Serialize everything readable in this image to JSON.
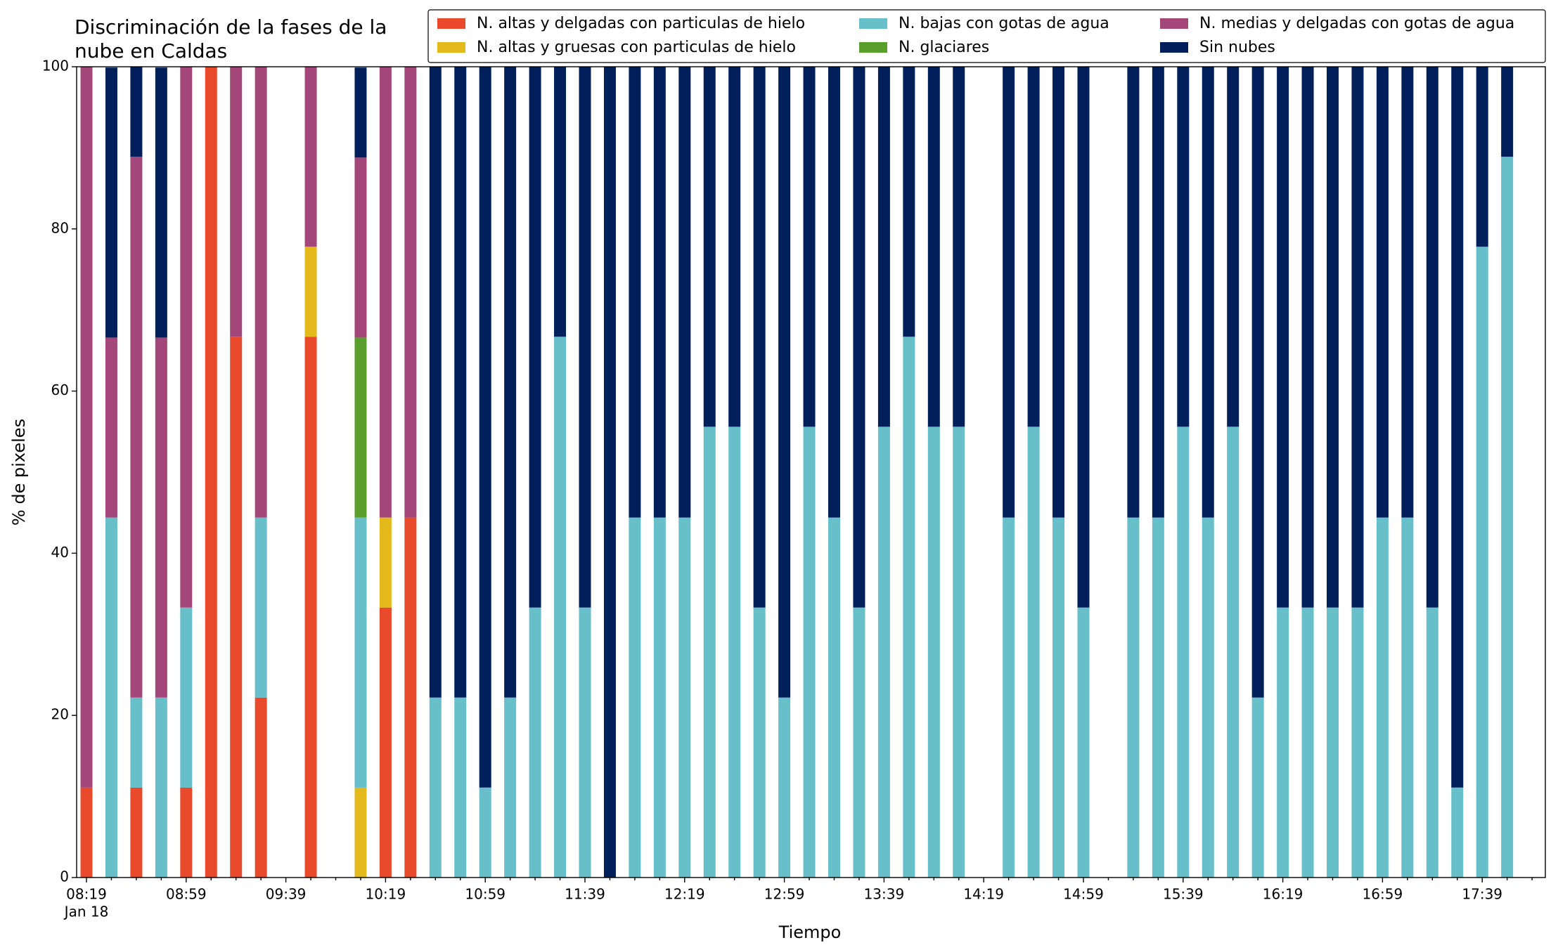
{
  "chart_data": {
    "type": "stacked_bar",
    "title_lines": [
      "Discriminación de la fases de la",
      "nube en Caldas"
    ],
    "xlabel": "Tiempo",
    "ylabel": "% de pixeles",
    "categories": [
      "08:19",
      null,
      null,
      null,
      "08:59",
      null,
      null,
      null,
      "09:39",
      null,
      null,
      null,
      "10:19",
      null,
      null,
      null,
      "10:59",
      null,
      null,
      null,
      "11:39",
      null,
      null,
      null,
      "12:19",
      null,
      null,
      null,
      "12:59",
      null,
      null,
      null,
      "13:39",
      null,
      null,
      null,
      "14:19",
      null,
      null,
      null,
      "14:59",
      null,
      null,
      null,
      "15:39",
      null,
      null,
      null,
      "16:19",
      null,
      null,
      null,
      "16:59",
      null,
      null,
      null,
      "17:39",
      null,
      null
    ],
    "x_date_label": "Jan 18",
    "ylim": [
      0,
      100
    ],
    "yticks": [
      0,
      20,
      40,
      60,
      80,
      100
    ],
    "legend": "top-right",
    "series": [
      {
        "name": "N. altas y delgadas con particulas de hielo",
        "color": "#e84a2b",
        "values": [
          11.1,
          0,
          11.1,
          0,
          11.1,
          100,
          66.7,
          22.2,
          null,
          66.7,
          null,
          0,
          33.3,
          44.4,
          0,
          0,
          0,
          0,
          0,
          0,
          0,
          0,
          0,
          0,
          0,
          0,
          0,
          0,
          0,
          0,
          0,
          0,
          0,
          0,
          0,
          0,
          null,
          0,
          0,
          0,
          0,
          null,
          0,
          0,
          0,
          0,
          0,
          0,
          0,
          0,
          0,
          0,
          0,
          0,
          0,
          0,
          0,
          0,
          null
        ]
      },
      {
        "name": "N. altas y gruesas con particulas de hielo",
        "color": "#e3b91c",
        "values": [
          0,
          0,
          0,
          0,
          0,
          0,
          0,
          0,
          null,
          11.1,
          null,
          11.1,
          11.1,
          0,
          0,
          0,
          0,
          0,
          0,
          0,
          0,
          0,
          0,
          0,
          0,
          0,
          0,
          0,
          0,
          0,
          0,
          0,
          0,
          0,
          0,
          0,
          null,
          0,
          0,
          0,
          0,
          null,
          0,
          0,
          0,
          0,
          0,
          0,
          0,
          0,
          0,
          0,
          0,
          0,
          0,
          0,
          0,
          0,
          null
        ]
      },
      {
        "name": "N. bajas con gotas de agua",
        "color": "#67bfca",
        "values": [
          0,
          44.4,
          11.1,
          22.2,
          22.2,
          0,
          0,
          22.2,
          null,
          0,
          null,
          33.3,
          0,
          0,
          22.2,
          22.2,
          11.1,
          22.2,
          33.3,
          66.7,
          33.3,
          0,
          44.4,
          44.4,
          44.4,
          55.6,
          55.6,
          33.3,
          22.2,
          55.6,
          44.4,
          33.3,
          55.6,
          66.7,
          55.6,
          55.6,
          null,
          44.4,
          55.6,
          44.4,
          33.3,
          null,
          44.4,
          44.4,
          55.6,
          44.4,
          55.6,
          22.2,
          33.3,
          33.3,
          33.3,
          33.3,
          44.4,
          44.4,
          33.3,
          11.1,
          77.8,
          88.9,
          null
        ]
      },
      {
        "name": "N. glaciares",
        "color": "#5a9e2b",
        "values": [
          0,
          0,
          0,
          0,
          0,
          0,
          0,
          0,
          null,
          0,
          null,
          22.2,
          0,
          0,
          0,
          0,
          0,
          0,
          0,
          0,
          0,
          0,
          0,
          0,
          0,
          0,
          0,
          0,
          0,
          0,
          0,
          0,
          0,
          0,
          0,
          0,
          null,
          0,
          0,
          0,
          0,
          null,
          0,
          0,
          0,
          0,
          0,
          0,
          0,
          0,
          0,
          0,
          0,
          0,
          0,
          0,
          0,
          0,
          null
        ]
      },
      {
        "name": "N. medias y delgadas con gotas de agua",
        "color": "#a3477a",
        "values": [
          88.9,
          22.2,
          66.7,
          44.4,
          66.7,
          0,
          33.3,
          55.6,
          null,
          22.2,
          null,
          22.2,
          55.6,
          55.6,
          0,
          0,
          0,
          0,
          0,
          0,
          0,
          0,
          0,
          0,
          0,
          0,
          0,
          0,
          0,
          0,
          0,
          0,
          0,
          0,
          0,
          0,
          null,
          0,
          0,
          0,
          0,
          null,
          0,
          0,
          0,
          0,
          0,
          0,
          0,
          0,
          0,
          0,
          0,
          0,
          0,
          0,
          0,
          0,
          null
        ]
      },
      {
        "name": "Sin nubes",
        "color": "#011f5b",
        "values": [
          0,
          33.3,
          11.1,
          33.3,
          0,
          0,
          0,
          0,
          null,
          0,
          null,
          11.1,
          0,
          0,
          77.8,
          77.8,
          88.9,
          77.8,
          66.7,
          33.3,
          66.7,
          100,
          55.6,
          55.6,
          55.6,
          44.4,
          44.4,
          66.7,
          77.8,
          44.4,
          55.6,
          66.7,
          44.4,
          33.3,
          44.4,
          44.4,
          null,
          55.6,
          44.4,
          55.6,
          66.7,
          null,
          55.6,
          55.6,
          44.4,
          55.6,
          44.4,
          77.8,
          66.7,
          66.7,
          66.7,
          66.7,
          55.6,
          55.6,
          66.7,
          88.9,
          22.2,
          11.1,
          null
        ]
      }
    ]
  }
}
